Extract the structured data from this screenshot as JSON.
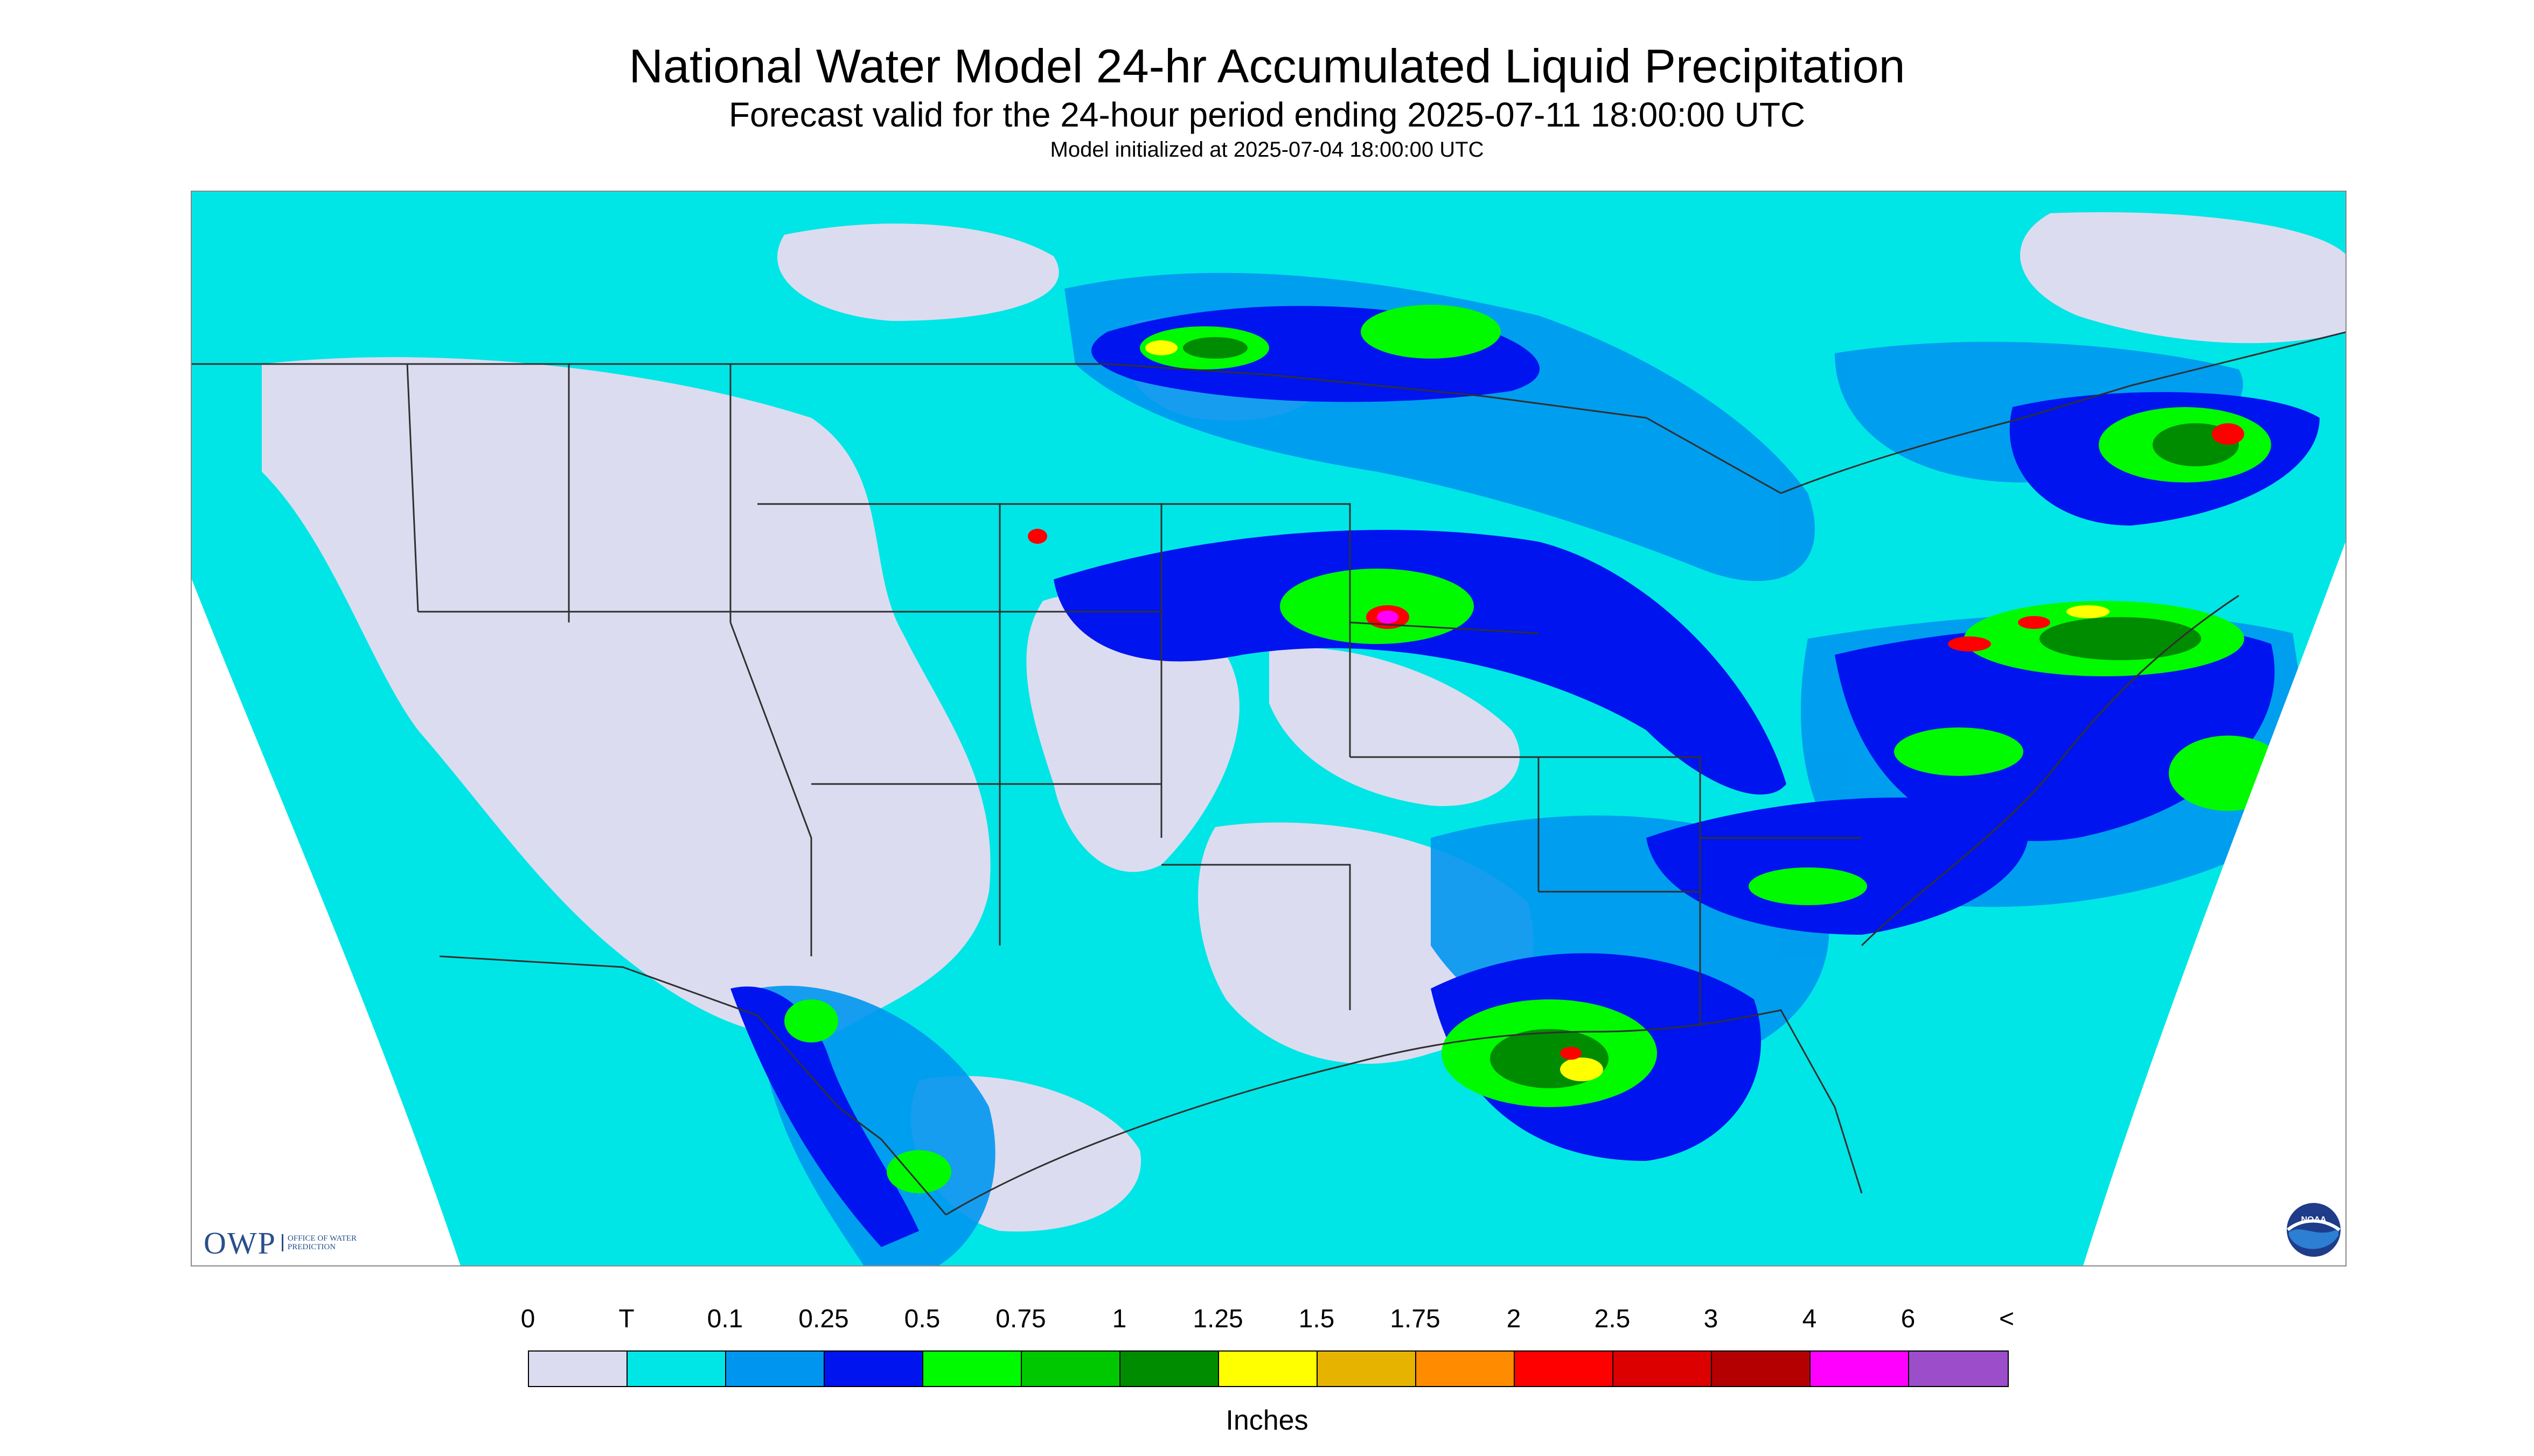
{
  "title": "National Water Model 24-hr Accumulated Liquid Precipitation",
  "subtitle": "Forecast valid for the 24-hour period ending 2025-07-11 18:00:00 UTC",
  "init_line": "Model initialized at 2025-07-04 18:00:00 UTC",
  "logos": {
    "owp_text": "OWP",
    "owp_sub": "OFFICE OF WATER PREDICTION",
    "noaa_text": "NOAA"
  },
  "legend": {
    "labels": [
      "0",
      "T",
      "0.1",
      "0.25",
      "0.5",
      "0.75",
      "1",
      "1.25",
      "1.5",
      "1.75",
      "2",
      "2.5",
      "3",
      "4",
      "6",
      "<"
    ],
    "colors": [
      "#dcdcf0",
      "#00e6e6",
      "#0096f0",
      "#0014f0",
      "#00fa00",
      "#00c800",
      "#008c00",
      "#ffff00",
      "#e6b400",
      "#ff8c00",
      "#ff0000",
      "#dc0000",
      "#b40000",
      "#ff00ff",
      "#9b4dca"
    ],
    "units": "Inches"
  },
  "map_colors": {
    "background": "#dcdcf0",
    "trace": "#00e6e6",
    "light": "#0096f0",
    "moderate": "#0014f0",
    "green": "#00fa00",
    "mid_green": "#00c800",
    "dark_green": "#008c00",
    "yellow": "#ffff00",
    "red": "#ff0000",
    "magenta": "#ff00ff",
    "outside": "#ffffff",
    "borders": "#303030"
  }
}
